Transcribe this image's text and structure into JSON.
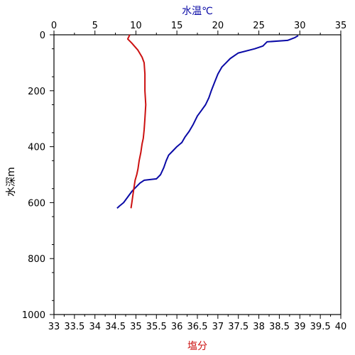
{
  "colors": {
    "temperature": "#0a0aa6",
    "salinity": "#cc1111",
    "axis": "#000000",
    "background": "#ffffff"
  },
  "chart_data": {
    "type": "line",
    "y_axis": {
      "label": "水深m",
      "range": [
        0,
        1000
      ],
      "inverted": true,
      "ticks": [
        0,
        200,
        400,
        600,
        800,
        1000
      ]
    },
    "top_axis": {
      "label": "水温℃",
      "range": [
        0,
        35
      ],
      "ticks": [
        0,
        5,
        10,
        15,
        20,
        25,
        30,
        35
      ]
    },
    "bottom_axis": {
      "label": "塩分",
      "range": [
        33,
        40
      ],
      "ticks": [
        "33",
        "33.5",
        "34",
        "34.5",
        "35",
        "35.5",
        "36",
        "36.5",
        "37",
        "37.5",
        "38",
        "38.5",
        "39",
        "39.5",
        "40"
      ]
    },
    "grid": false,
    "series": [
      {
        "name": "水温℃",
        "axis": "top",
        "points": [
          [
            29.8,
            3
          ],
          [
            29.4,
            10
          ],
          [
            28.5,
            20
          ],
          [
            26.0,
            25
          ],
          [
            25.5,
            40
          ],
          [
            24.5,
            50
          ],
          [
            22.5,
            65
          ],
          [
            21.5,
            85
          ],
          [
            21.0,
            100
          ],
          [
            20.5,
            115
          ],
          [
            20.0,
            140
          ],
          [
            19.6,
            170
          ],
          [
            19.2,
            200
          ],
          [
            18.9,
            225
          ],
          [
            18.5,
            250
          ],
          [
            18.0,
            270
          ],
          [
            17.5,
            290
          ],
          [
            17.0,
            320
          ],
          [
            16.5,
            345
          ],
          [
            16.0,
            365
          ],
          [
            15.6,
            385
          ],
          [
            15.0,
            400
          ],
          [
            14.5,
            415
          ],
          [
            14.0,
            430
          ],
          [
            13.7,
            450
          ],
          [
            13.4,
            475
          ],
          [
            13.0,
            500
          ],
          [
            12.5,
            515
          ],
          [
            11.0,
            520
          ],
          [
            10.5,
            530
          ],
          [
            10.0,
            545
          ],
          [
            9.5,
            560
          ],
          [
            9.0,
            580
          ],
          [
            8.5,
            600
          ],
          [
            8.0,
            612
          ],
          [
            7.7,
            620
          ]
        ]
      },
      {
        "name": "塩分",
        "axis": "bottom",
        "points": [
          [
            34.85,
            0
          ],
          [
            34.8,
            15
          ],
          [
            34.9,
            30
          ],
          [
            35.05,
            55
          ],
          [
            35.15,
            80
          ],
          [
            35.2,
            100
          ],
          [
            35.22,
            140
          ],
          [
            35.22,
            200
          ],
          [
            35.24,
            250
          ],
          [
            35.22,
            300
          ],
          [
            35.2,
            340
          ],
          [
            35.18,
            370
          ],
          [
            35.15,
            390
          ],
          [
            35.12,
            420
          ],
          [
            35.08,
            450
          ],
          [
            35.05,
            480
          ],
          [
            35.02,
            500
          ],
          [
            34.98,
            520
          ],
          [
            34.95,
            550
          ],
          [
            34.92,
            580
          ],
          [
            34.9,
            600
          ],
          [
            34.88,
            620
          ]
        ]
      }
    ]
  }
}
